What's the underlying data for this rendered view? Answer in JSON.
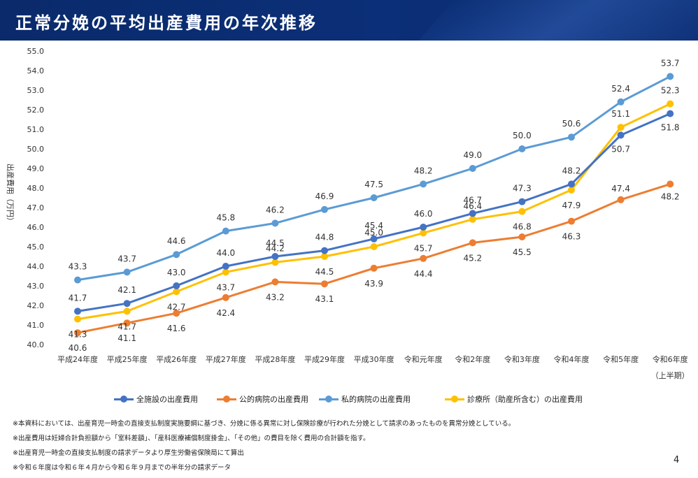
{
  "header": {
    "title": "正常分娩の平均出産費用の年次推移"
  },
  "page_number": "4",
  "notes": [
    "※本資料においては、出産育児一時金の直接支払制度実施要綱に基づき、分娩に係る異常に対し保険診療が行われた分娩として請求のあったものを異常分娩としている。",
    "※出産費用は妊婦合計負担額から「室料差額」、「産科医療補償制度掛金」、「その他」の費目を除く費用の合計額を指す。",
    "※出産育児一時金の直接支払制度の請求データより厚生労働省保険局にて算出",
    "※令和６年度は令和６年４月から令和６年９月までの半年分の請求データ"
  ],
  "chart_data": {
    "type": "line",
    "ylabel": "出産費用（万円）",
    "xlabel": "",
    "ylim": [
      40.0,
      55.0
    ],
    "ytick_step": 1.0,
    "grid": false,
    "legend_position": "bottom",
    "categories": [
      "平成24年度",
      "平成25年度",
      "平成26年度",
      "平成27年度",
      "平成28年度",
      "平成29年度",
      "平成30年度",
      "令和元年度",
      "令和2年度",
      "令和3年度",
      "令和4年度",
      "令和5年度",
      "令和6年度"
    ],
    "category_note": {
      "index": 12,
      "text": "（上半期）"
    },
    "series": [
      {
        "name": "全施設の出産費用",
        "color": "#4472c4",
        "values": [
          41.7,
          42.1,
          43.0,
          44.0,
          44.5,
          44.8,
          45.4,
          46.0,
          46.7,
          47.3,
          48.2,
          50.7,
          51.8
        ],
        "labels": [
          "41.7",
          "42.1",
          "43.0",
          "44.0",
          "44.5",
          "44.8",
          "45.4",
          "46.0",
          "46.7",
          "47.3",
          "48.2",
          "50.7",
          "51.8"
        ]
      },
      {
        "name": "公的病院の出産費用",
        "color": "#ed7d31",
        "values": [
          40.6,
          41.1,
          41.6,
          42.4,
          43.2,
          43.1,
          43.9,
          44.4,
          45.2,
          45.5,
          46.3,
          47.4,
          48.2
        ],
        "labels": [
          "40.6",
          "41.1",
          "41.6",
          "42.4",
          "43.2",
          "43.1",
          "43.9",
          "44.4",
          "45.2",
          "45.5",
          "46.3",
          "47.4",
          "48.2"
        ]
      },
      {
        "name": "私的病院の出産費用",
        "color": "#5b9bd5",
        "values": [
          43.3,
          43.7,
          44.6,
          45.8,
          46.2,
          46.9,
          47.5,
          48.2,
          49.0,
          50.0,
          50.6,
          52.4,
          53.7
        ],
        "labels": [
          "43.3",
          "43.7",
          "44.6",
          "45.8",
          "46.2",
          "46.9",
          "47.5",
          "48.2",
          "49.0",
          "50.0",
          "50.6",
          "52.4",
          "53.7"
        ]
      },
      {
        "name": "診療所（助産所含む）の出産費用",
        "color": "#ffc000",
        "values": [
          41.3,
          41.7,
          42.7,
          43.7,
          44.2,
          44.5,
          45.0,
          45.7,
          46.4,
          46.8,
          47.9,
          51.1,
          52.3
        ],
        "labels": [
          "41.3",
          "41.7",
          "42.7",
          "43.7",
          "44.2",
          "44.5",
          "45.0",
          "45.7",
          "46.4",
          "46.8",
          "47.9",
          "51.1",
          "52.3"
        ]
      }
    ]
  }
}
